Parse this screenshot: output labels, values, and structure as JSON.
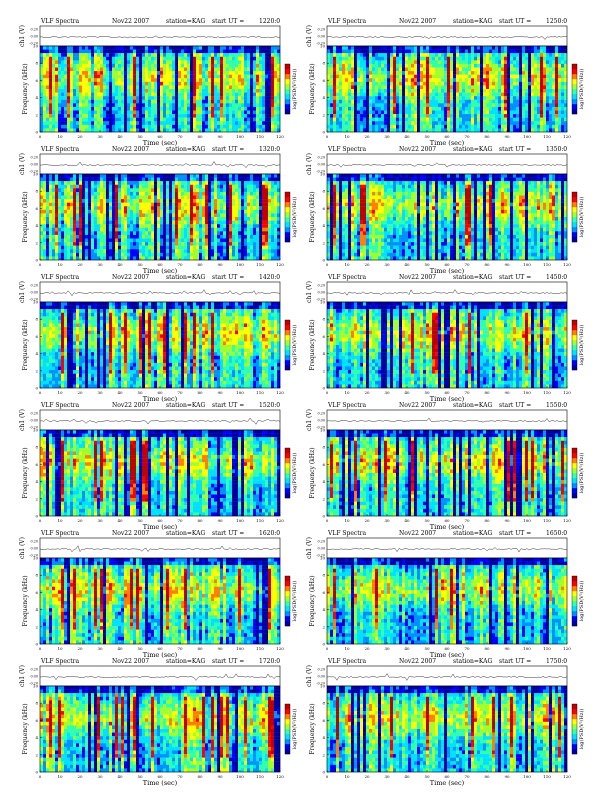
{
  "page": {
    "panel_common": {
      "title_left": "VLF Spectra",
      "date": "Nov22 2007",
      "station": "station=KAG",
      "start_prefix": "start  UT  ="
    },
    "axes": {
      "ch_label": "ch1 (V)",
      "freq_label": "Frequency  (kHz)",
      "time_label": "Time  (sec)",
      "colorbar_label": "log(PSD(V²/Hz))",
      "ch_ticks": [
        "0.20",
        "0.00",
        "-0.20"
      ],
      "freq_ticks": [
        "0",
        "2",
        "4",
        "6",
        "8",
        "10"
      ],
      "time_ticks": [
        "0",
        "10",
        "20",
        "30",
        "40",
        "50",
        "60",
        "70",
        "80",
        "90",
        "100",
        "110",
        "120"
      ]
    },
    "colors": {
      "colormap": [
        "#0000a0",
        "#0000ff",
        "#0090ff",
        "#00e0ff",
        "#30ffb0",
        "#a0ff30",
        "#ffff00",
        "#ff8000",
        "#ff0000",
        "#c00000"
      ]
    }
  },
  "chart_data": [
    {
      "type": "heatmap",
      "start_ut": "1220:0",
      "xlabel": "Time  (sec)",
      "ylabel": "Frequency  (kHz)",
      "xlim": [
        0,
        120
      ],
      "ylim": [
        0,
        10
      ]
    },
    {
      "type": "heatmap",
      "start_ut": "1250:0",
      "xlabel": "Time  (sec)",
      "ylabel": "Frequency  (kHz)",
      "xlim": [
        0,
        120
      ],
      "ylim": [
        0,
        10
      ]
    },
    {
      "type": "heatmap",
      "start_ut": "1320:0",
      "xlabel": "Time  (sec)",
      "ylabel": "Frequency  (kHz)",
      "xlim": [
        0,
        120
      ],
      "ylim": [
        0,
        10
      ]
    },
    {
      "type": "heatmap",
      "start_ut": "1350:0",
      "xlabel": "Time  (sec)",
      "ylabel": "Frequency  (kHz)",
      "xlim": [
        0,
        120
      ],
      "ylim": [
        0,
        10
      ]
    },
    {
      "type": "heatmap",
      "start_ut": "1420:0",
      "xlabel": "Time  (sec)",
      "ylabel": "Frequency  (kHz)",
      "xlim": [
        0,
        120
      ],
      "ylim": [
        0,
        10
      ]
    },
    {
      "type": "heatmap",
      "start_ut": "1450:0",
      "xlabel": "Time  (sec)",
      "ylabel": "Frequency  (kHz)",
      "xlim": [
        0,
        120
      ],
      "ylim": [
        0,
        10
      ]
    },
    {
      "type": "heatmap",
      "start_ut": "1520:0",
      "xlabel": "Time  (sec)",
      "ylabel": "Frequency  (kHz)",
      "xlim": [
        0,
        120
      ],
      "ylim": [
        0,
        10
      ]
    },
    {
      "type": "heatmap",
      "start_ut": "1550:0",
      "xlabel": "Time  (sec)",
      "ylabel": "Frequency  (kHz)",
      "xlim": [
        0,
        120
      ],
      "ylim": [
        0,
        10
      ]
    },
    {
      "type": "heatmap",
      "start_ut": "1620:0",
      "xlabel": "Time  (sec)",
      "ylabel": "Frequency  (kHz)",
      "xlim": [
        0,
        120
      ],
      "ylim": [
        0,
        10
      ]
    },
    {
      "type": "heatmap",
      "start_ut": "1650:0",
      "xlabel": "Time  (sec)",
      "ylabel": "Frequency  (kHz)",
      "xlim": [
        0,
        120
      ],
      "ylim": [
        0,
        10
      ]
    },
    {
      "type": "heatmap",
      "start_ut": "1720:0",
      "xlabel": "Time  (sec)",
      "ylabel": "Frequency  (kHz)",
      "xlim": [
        0,
        120
      ],
      "ylim": [
        0,
        10
      ]
    },
    {
      "type": "heatmap",
      "start_ut": "1750:0",
      "xlabel": "Time  (sec)",
      "ylabel": "Frequency  (kHz)",
      "xlim": [
        0,
        120
      ],
      "ylim": [
        0,
        10
      ]
    }
  ]
}
